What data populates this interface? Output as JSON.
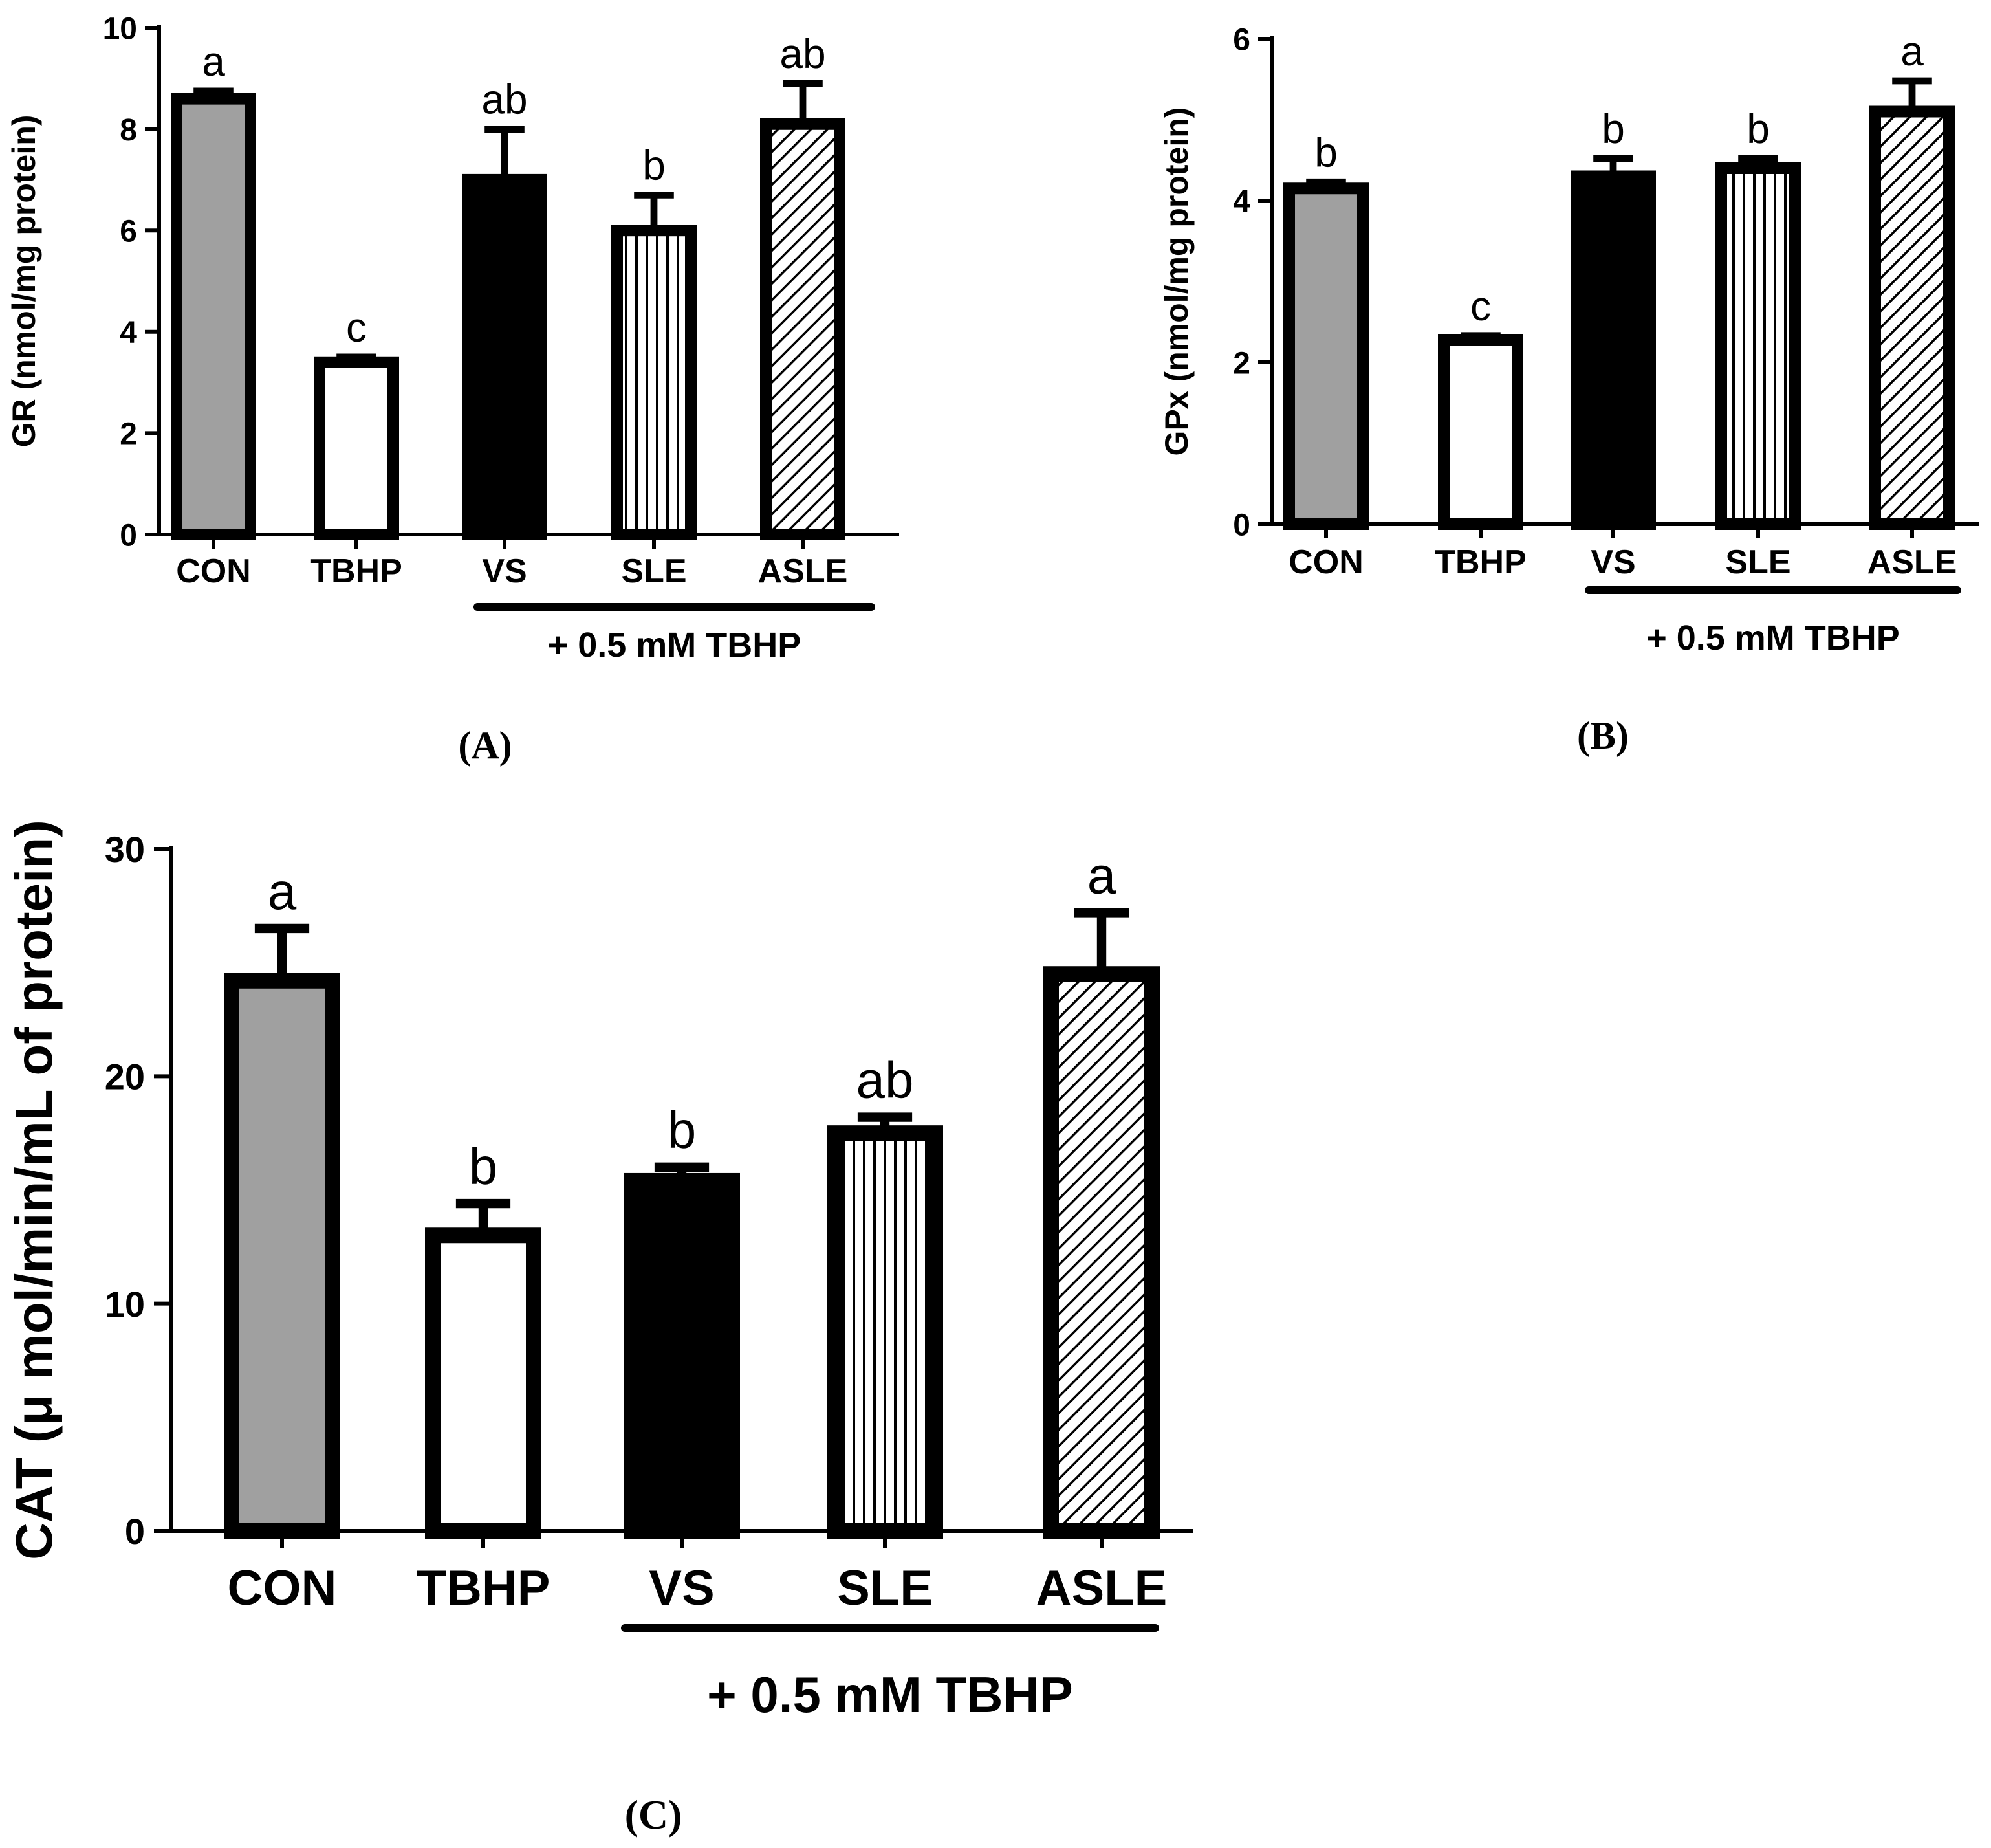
{
  "colors": {
    "con": "#a0a0a0",
    "tbhp": "#ffffff",
    "vs": "#000000",
    "stroke": "#000000"
  },
  "chart_data": [
    {
      "id": "A",
      "type": "bar",
      "panel_label": "(A)",
      "ylabel": "GR (nmol/mg protein)",
      "ylim": [
        0,
        10
      ],
      "yticks": [
        0,
        2,
        4,
        6,
        8,
        10
      ],
      "ytick_labels": [
        "0",
        "2",
        "4",
        "6",
        "8",
        "10"
      ],
      "categories": [
        "CON",
        "TBHP",
        "VS",
        "SLE",
        "ASLE"
      ],
      "values": [
        8.6,
        3.4,
        7.0,
        6.0,
        8.1
      ],
      "errors": [
        0.15,
        0.1,
        1.0,
        0.7,
        0.8
      ],
      "significance": [
        "a",
        "c",
        "ab",
        "b",
        "ab"
      ],
      "fills": [
        "gray",
        "white",
        "black",
        "vertical",
        "diagonal"
      ],
      "group_label": "+ 0.5 mM TBHP"
    },
    {
      "id": "B",
      "type": "bar",
      "panel_label": "(B)",
      "ylabel": "GPx (nmol/mg protein)",
      "ylim": [
        0,
        6
      ],
      "yticks": [
        0,
        2,
        4,
        6
      ],
      "ytick_labels": [
        "0",
        "2",
        "4",
        "6"
      ],
      "categories": [
        "CON",
        "TBHP",
        "VS",
        "SLE",
        "ASLE"
      ],
      "values": [
        4.15,
        2.28,
        4.3,
        4.4,
        5.1
      ],
      "errors": [
        0.08,
        0.05,
        0.22,
        0.12,
        0.38
      ],
      "significance": [
        "b",
        "c",
        "b",
        "b",
        "a"
      ],
      "fills": [
        "gray",
        "white",
        "black",
        "vertical",
        "diagonal"
      ],
      "group_label": "+ 0.5 mM TBHP"
    },
    {
      "id": "C",
      "type": "bar",
      "panel_label": "(C)",
      "ylabel": "CAT (μ mol/min/mL of protein)",
      "ylim": [
        0,
        30
      ],
      "yticks": [
        0,
        10,
        20,
        30
      ],
      "ytick_labels": [
        "0",
        "10",
        "20",
        "30"
      ],
      "categories": [
        "CON",
        "TBHP",
        "VS",
        "SLE",
        "ASLE"
      ],
      "values": [
        24.2,
        13.0,
        15.4,
        17.5,
        24.5
      ],
      "errors": [
        2.3,
        1.4,
        0.6,
        0.7,
        2.7
      ],
      "significance": [
        "a",
        "b",
        "b",
        "ab",
        "a"
      ],
      "fills": [
        "gray",
        "white",
        "black",
        "vertical",
        "diagonal"
      ],
      "group_label": "+ 0.5 mM TBHP"
    }
  ]
}
